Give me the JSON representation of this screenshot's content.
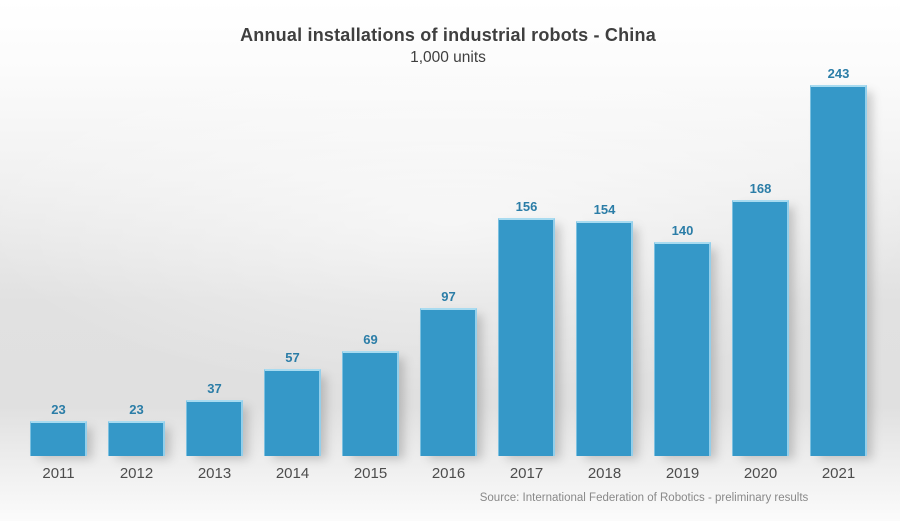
{
  "slide": {
    "title": "Annual installations of industrial robots - China",
    "subtitle": "1,000 units",
    "source": "Source: International Federation of Robotics - preliminary results"
  },
  "chart_data": {
    "type": "bar",
    "title": "Annual installations of industrial robots - China",
    "subtitle": "1,000 units",
    "unit": "1,000 units",
    "categories": [
      "2011",
      "2012",
      "2013",
      "2014",
      "2015",
      "2016",
      "2017",
      "2018",
      "2019",
      "2020",
      "2021"
    ],
    "values": [
      23,
      23,
      37,
      57,
      69,
      97,
      156,
      154,
      140,
      168,
      243
    ],
    "source": "Source: International Federation of Robotics - preliminary results",
    "ylim": [
      0,
      260
    ],
    "grid": false,
    "legend": false,
    "value_labels": "above bars",
    "bar_color": "#3598c8",
    "bar_highlight_color": "#a8dbf0",
    "value_label_color": "#2b7da7",
    "axis_label_color": "#4d4d4d",
    "title_color": "#3f3f3f",
    "source_color": "#898989"
  }
}
